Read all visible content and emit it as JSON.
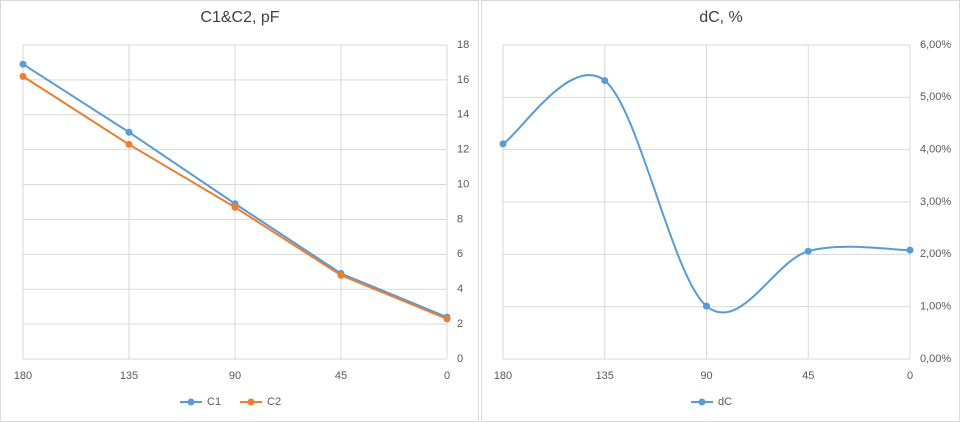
{
  "chart_data": [
    {
      "type": "line",
      "title": "C1&C2, pF",
      "x": [
        180,
        135,
        90,
        45,
        0
      ],
      "xlim": [
        180,
        0
      ],
      "xticks": [
        180,
        135,
        90,
        45,
        0
      ],
      "ylim": [
        0,
        18
      ],
      "yticks": [
        0,
        2,
        4,
        6,
        8,
        10,
        12,
        14,
        16,
        18
      ],
      "grid": true,
      "legend": "bottom",
      "smooth": false,
      "series": [
        {
          "name": "C1",
          "color": "#5b9bd5",
          "values": [
            16.9,
            13.0,
            8.9,
            4.9,
            2.4
          ]
        },
        {
          "name": "C2",
          "color": "#ed7d31",
          "values": [
            16.2,
            12.3,
            8.7,
            4.8,
            2.3
          ]
        }
      ]
    },
    {
      "type": "line",
      "title": "dC, %",
      "x": [
        180,
        135,
        90,
        45,
        0
      ],
      "xlim": [
        180,
        0
      ],
      "xticks": [
        180,
        135,
        90,
        45,
        0
      ],
      "ylim": [
        0,
        6
      ],
      "yticks": [
        {
          "value": 0,
          "label": "0,00%"
        },
        {
          "value": 1,
          "label": "1,00%"
        },
        {
          "value": 2,
          "label": "2,00%"
        },
        {
          "value": 3,
          "label": "3,00%"
        },
        {
          "value": 4,
          "label": "4,00%"
        },
        {
          "value": 5,
          "label": "5,00%"
        },
        {
          "value": 6,
          "label": "6,00%"
        }
      ],
      "grid": true,
      "legend": "bottom",
      "smooth": true,
      "series": [
        {
          "name": "dC",
          "color": "#5b9bd5",
          "values": [
            4.11,
            5.32,
            1.01,
            2.06,
            2.08
          ]
        }
      ]
    }
  ]
}
